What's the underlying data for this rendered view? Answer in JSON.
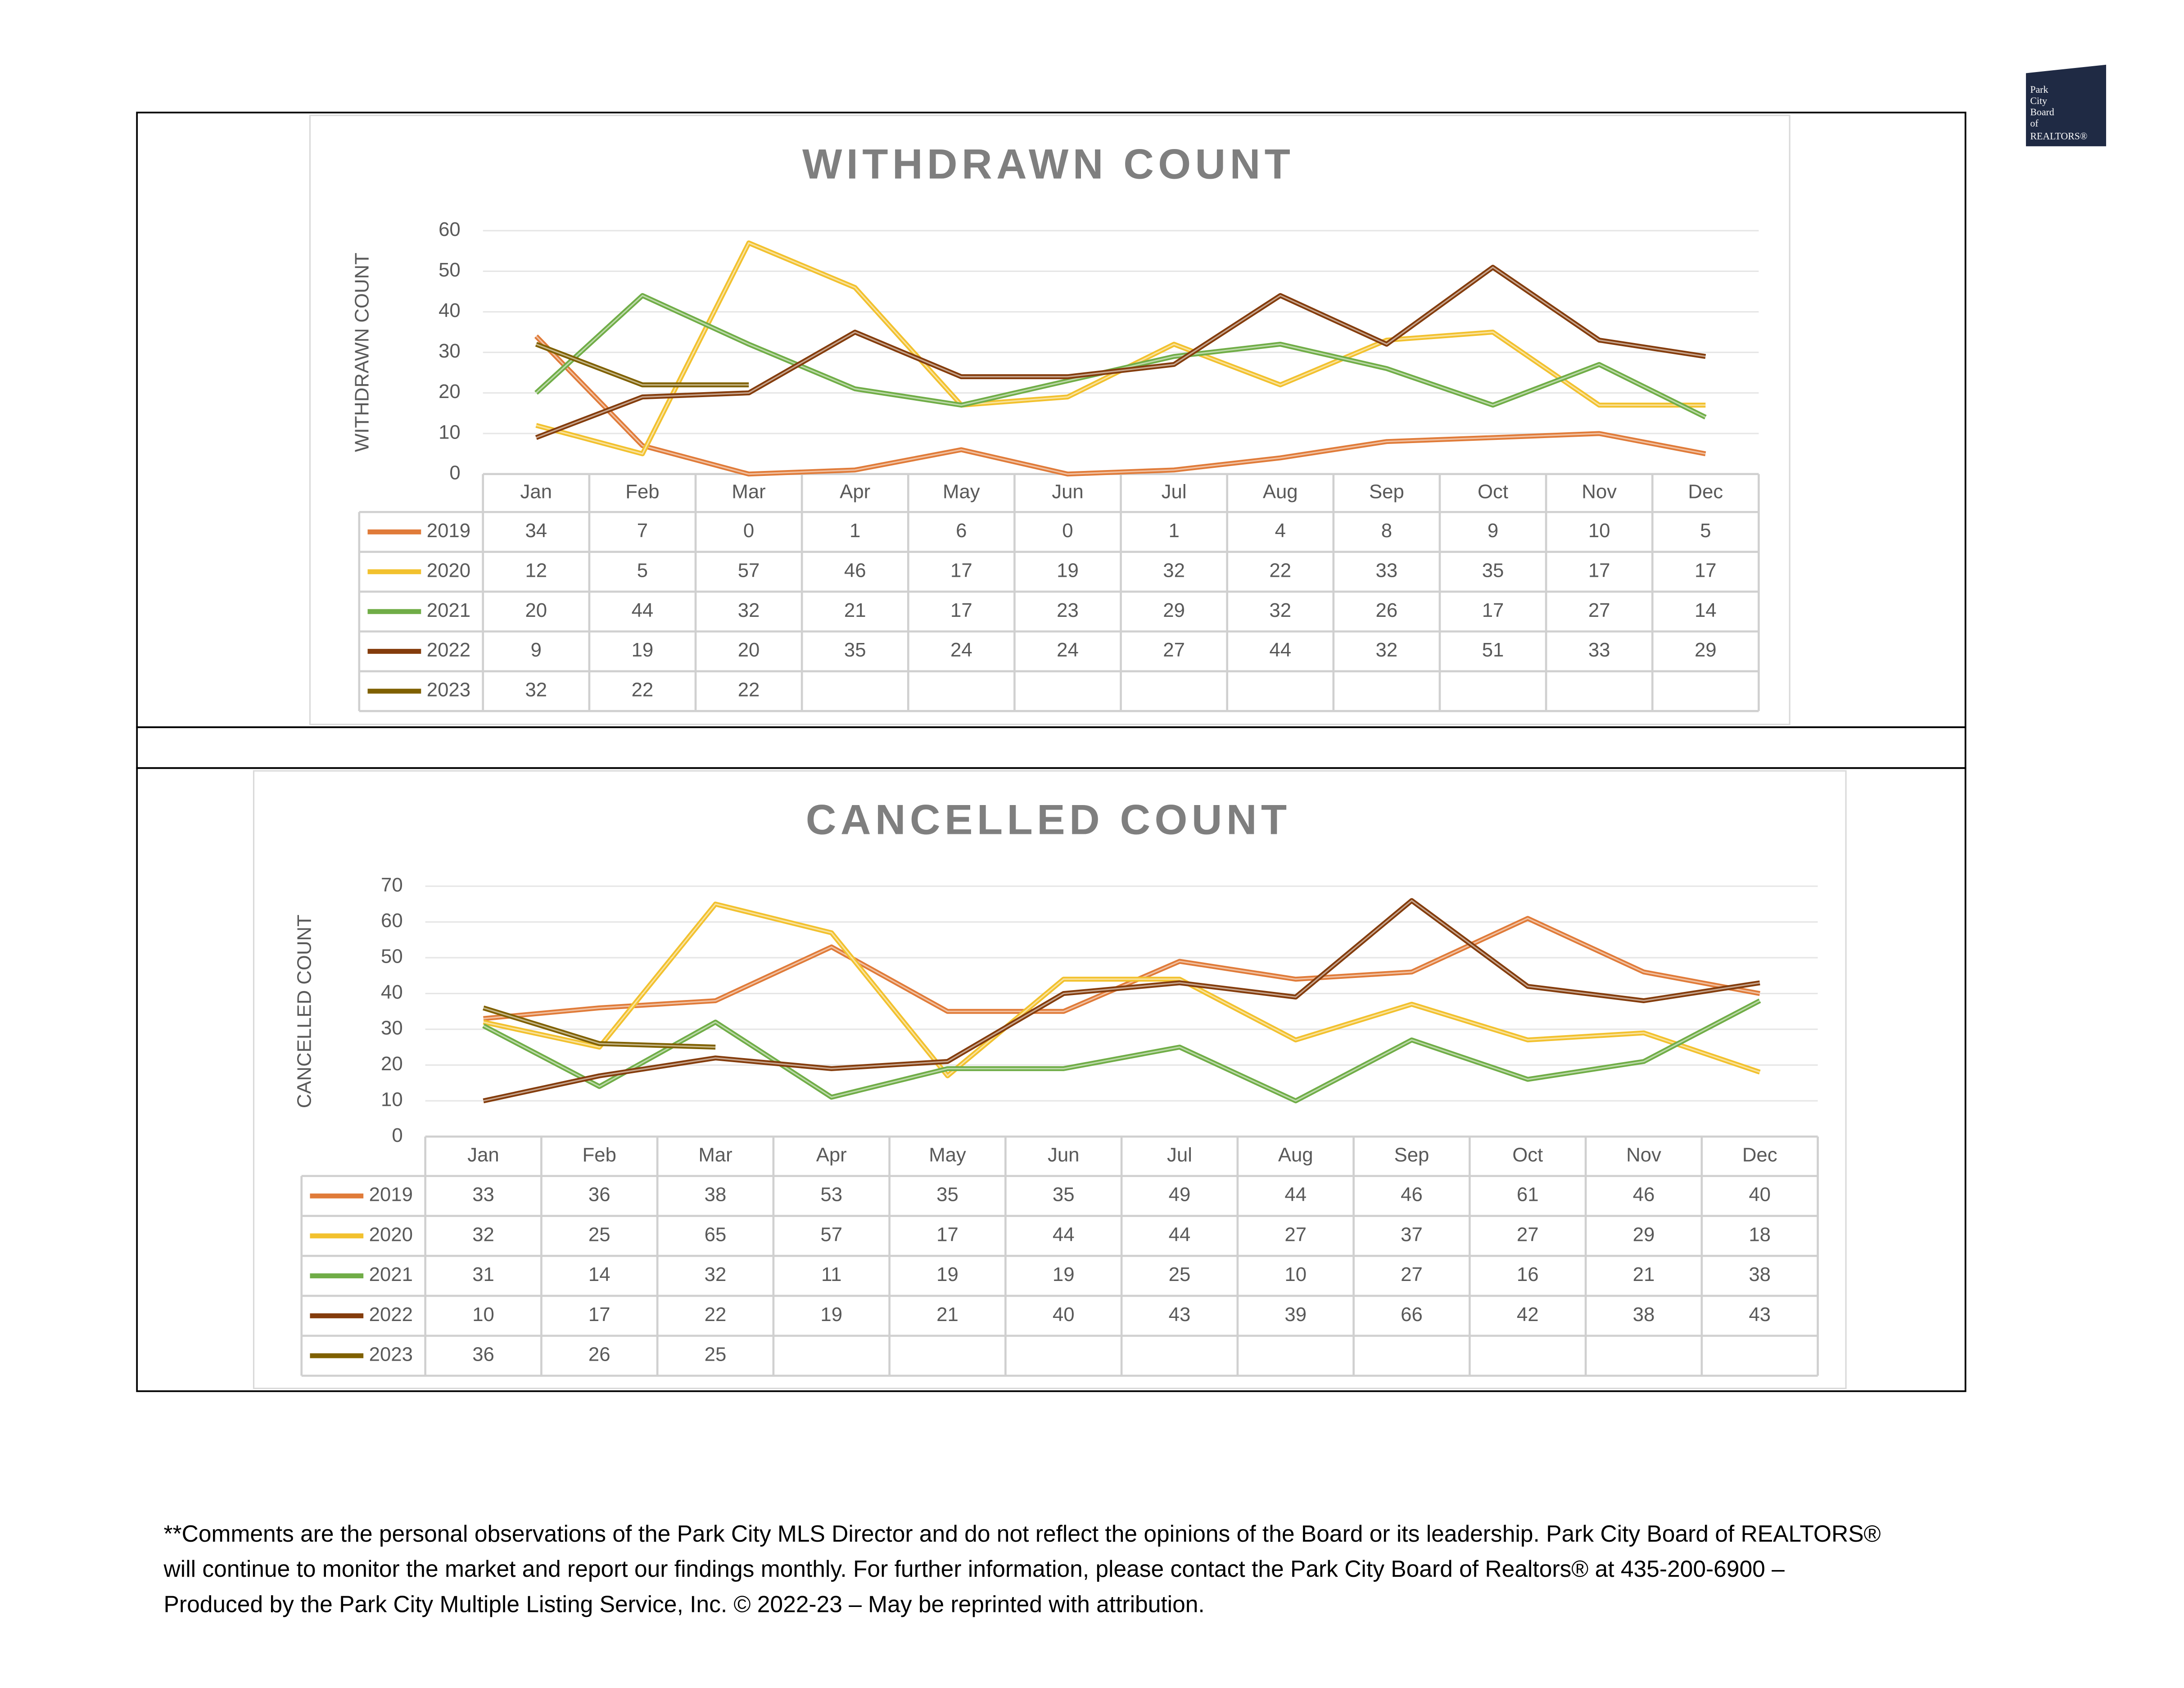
{
  "logo": [
    "Park",
    "City",
    "Board",
    "of",
    "REALTORS®"
  ],
  "chart_data": [
    {
      "type": "line",
      "title": "WITHDRAWN COUNT",
      "y_label": "WITHDRAWN COUNT",
      "categories": [
        "Jan",
        "Feb",
        "Mar",
        "Apr",
        "May",
        "Jun",
        "Jul",
        "Aug",
        "Sep",
        "Oct",
        "Nov",
        "Dec"
      ],
      "ylim": [
        0,
        60
      ],
      "yticks": [
        0,
        10,
        20,
        30,
        40,
        50,
        60
      ],
      "grid": true,
      "series": [
        {
          "name": "2019",
          "color": "#e07b39",
          "values": [
            34,
            7,
            0,
            1,
            6,
            0,
            1,
            4,
            8,
            9,
            10,
            5
          ]
        },
        {
          "name": "2020",
          "color": "#f2c12e",
          "values": [
            12,
            5,
            57,
            46,
            17,
            19,
            32,
            22,
            33,
            35,
            17,
            17
          ]
        },
        {
          "name": "2021",
          "color": "#70ad47",
          "values": [
            20,
            44,
            32,
            21,
            17,
            23,
            29,
            32,
            26,
            17,
            27,
            14
          ]
        },
        {
          "name": "2022",
          "color": "#843c0c",
          "values": [
            9,
            19,
            20,
            35,
            24,
            24,
            27,
            44,
            32,
            51,
            33,
            29
          ]
        },
        {
          "name": "2023",
          "color": "#7f6000",
          "values": [
            32,
            22,
            22,
            null,
            null,
            null,
            null,
            null,
            null,
            null,
            null,
            null
          ]
        }
      ]
    },
    {
      "type": "line",
      "title": "CANCELLED COUNT",
      "y_label": "CANCELLED COUNT",
      "categories": [
        "Jan",
        "Feb",
        "Mar",
        "Apr",
        "May",
        "Jun",
        "Jul",
        "Aug",
        "Sep",
        "Oct",
        "Nov",
        "Dec"
      ],
      "ylim": [
        0,
        70
      ],
      "yticks": [
        0,
        10,
        20,
        30,
        40,
        50,
        60,
        70
      ],
      "grid": true,
      "series": [
        {
          "name": "2019",
          "color": "#e07b39",
          "values": [
            33,
            36,
            38,
            53,
            35,
            35,
            49,
            44,
            46,
            61,
            46,
            40
          ]
        },
        {
          "name": "2020",
          "color": "#f2c12e",
          "values": [
            32,
            25,
            65,
            57,
            17,
            44,
            44,
            27,
            37,
            27,
            29,
            18
          ]
        },
        {
          "name": "2021",
          "color": "#70ad47",
          "values": [
            31,
            14,
            32,
            11,
            19,
            19,
            25,
            10,
            27,
            16,
            21,
            38
          ]
        },
        {
          "name": "2022",
          "color": "#843c0c",
          "values": [
            10,
            17,
            22,
            19,
            21,
            40,
            43,
            39,
            66,
            42,
            38,
            43
          ]
        },
        {
          "name": "2023",
          "color": "#7f6000",
          "values": [
            36,
            26,
            25,
            null,
            null,
            null,
            null,
            null,
            null,
            null,
            null,
            null
          ]
        }
      ]
    }
  ],
  "footer": [
    "**Comments are the personal observations of the Park City MLS Director and do not reflect the opinions of the Board or its leadership. Park City Board of REALTORS®",
    "will continue to monitor the market and report our findings monthly. For further information, please contact the Park City Board of Realtors® at 435-200-6900 –",
    "Produced by the Park City Multiple Listing Service, Inc. © 2022-23 – May be reprinted with attribution."
  ]
}
